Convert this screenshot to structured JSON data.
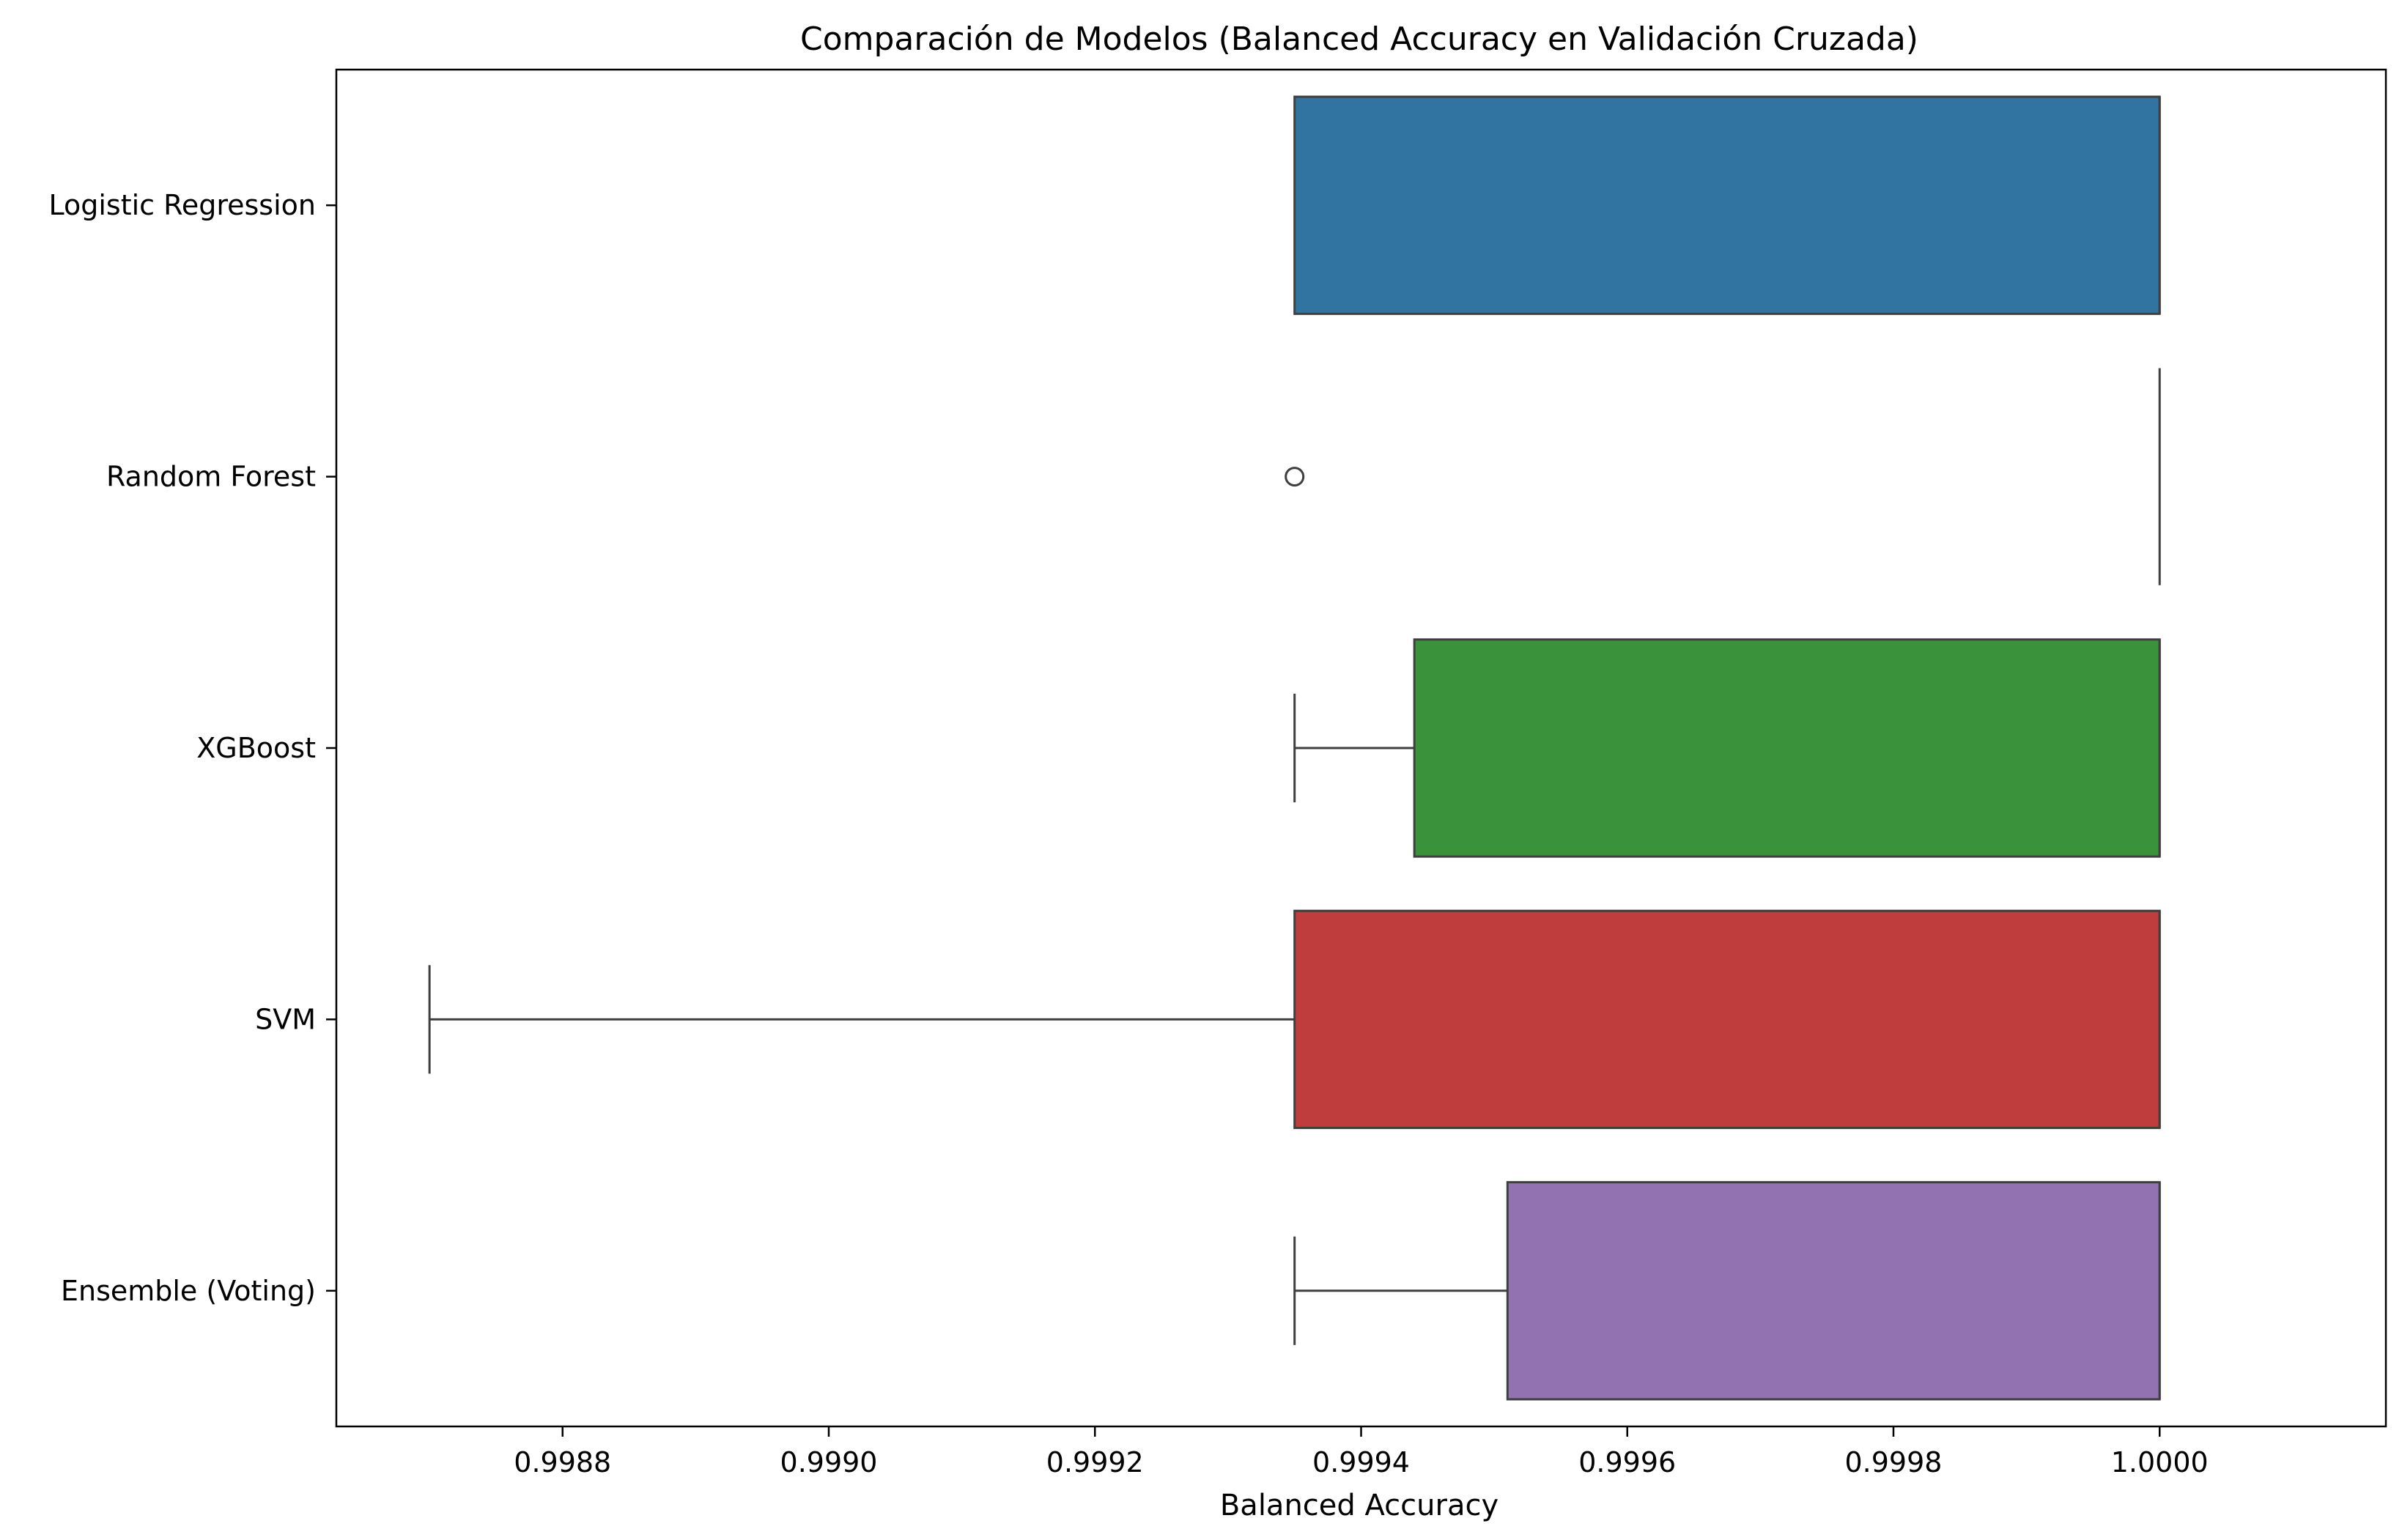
{
  "chart_data": {
    "type": "boxplot",
    "orientation": "horizontal",
    "title": "Comparación de Modelos (Balanced Accuracy en Validación Cruzada)",
    "xlabel": "Balanced Accuracy",
    "ylabel": "",
    "xlim": [
      0.99863,
      1.00017
    ],
    "grid": false,
    "xticks": [
      0.9988,
      0.999,
      0.9992,
      0.9994,
      0.9996,
      0.9998,
      1.0
    ],
    "xtick_labels": [
      "0.9988",
      "0.9990",
      "0.9992",
      "0.9994",
      "0.9996",
      "0.9998",
      "1.0000"
    ],
    "categories": [
      "Logistic Regression",
      "Random Forest",
      "XGBoost",
      "SVM",
      "Ensemble (Voting)"
    ],
    "boxes": [
      {
        "category": "Logistic Regression",
        "whisker_low": 0.99935,
        "q1": 0.99935,
        "median": 1.0,
        "q3": 1.0,
        "whisker_high": 1.0,
        "outliers": [],
        "color": "#3274a1"
      },
      {
        "category": "Random Forest",
        "whisker_low": 1.0,
        "q1": 1.0,
        "median": 1.0,
        "q3": 1.0,
        "whisker_high": 1.0,
        "outliers": [
          0.99935
        ],
        "color": "#e1812c"
      },
      {
        "category": "XGBoost",
        "whisker_low": 0.99935,
        "q1": 0.99944,
        "median": 1.0,
        "q3": 1.0,
        "whisker_high": 1.0,
        "outliers": [],
        "color": "#3a923a"
      },
      {
        "category": "SVM",
        "whisker_low": 0.9987,
        "q1": 0.99935,
        "median": 1.0,
        "q3": 1.0,
        "whisker_high": 1.0,
        "outliers": [],
        "color": "#c03d3e"
      },
      {
        "category": "Ensemble (Voting)",
        "whisker_low": 0.99935,
        "q1": 0.99951,
        "median": 1.0,
        "q3": 1.0,
        "whisker_high": 1.0,
        "outliers": [],
        "color": "#9372b2"
      }
    ]
  }
}
